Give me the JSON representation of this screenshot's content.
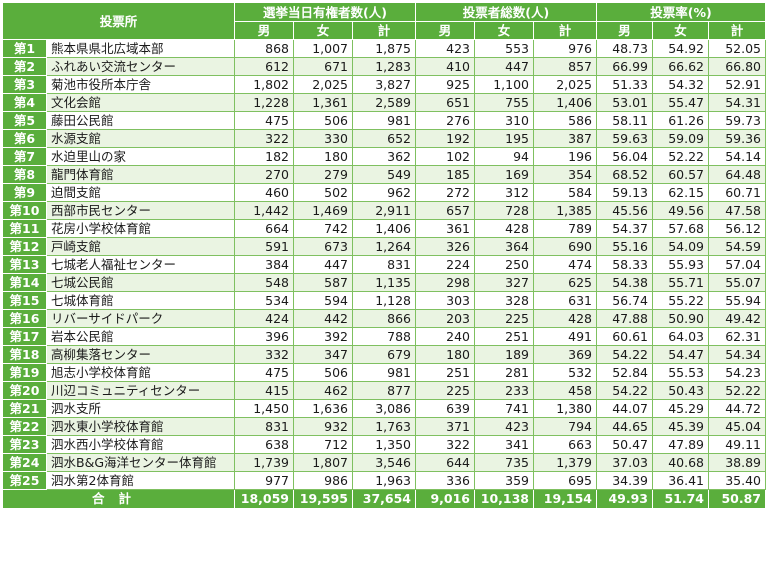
{
  "header": {
    "place": "投票所",
    "voters": "選挙当日有権者数(人)",
    "votes": "投票者総数(人)",
    "rate": "投票率(%)",
    "male": "男",
    "female": "女",
    "total": "計"
  },
  "rows": [
    {
      "no": "第1",
      "name": "熊本県県北広域本部",
      "v": [
        "868",
        "1,007",
        "1,875"
      ],
      "b": [
        "423",
        "553",
        "976"
      ],
      "r": [
        "48.73",
        "54.92",
        "52.05"
      ]
    },
    {
      "no": "第2",
      "name": "ふれあい交流センター",
      "v": [
        "612",
        "671",
        "1,283"
      ],
      "b": [
        "410",
        "447",
        "857"
      ],
      "r": [
        "66.99",
        "66.62",
        "66.80"
      ]
    },
    {
      "no": "第3",
      "name": "菊池市役所本庁舎",
      "v": [
        "1,802",
        "2,025",
        "3,827"
      ],
      "b": [
        "925",
        "1,100",
        "2,025"
      ],
      "r": [
        "51.33",
        "54.32",
        "52.91"
      ]
    },
    {
      "no": "第4",
      "name": "文化会館",
      "v": [
        "1,228",
        "1,361",
        "2,589"
      ],
      "b": [
        "651",
        "755",
        "1,406"
      ],
      "r": [
        "53.01",
        "55.47",
        "54.31"
      ]
    },
    {
      "no": "第5",
      "name": "藤田公民館",
      "v": [
        "475",
        "506",
        "981"
      ],
      "b": [
        "276",
        "310",
        "586"
      ],
      "r": [
        "58.11",
        "61.26",
        "59.73"
      ]
    },
    {
      "no": "第6",
      "name": "水源支館",
      "v": [
        "322",
        "330",
        "652"
      ],
      "b": [
        "192",
        "195",
        "387"
      ],
      "r": [
        "59.63",
        "59.09",
        "59.36"
      ]
    },
    {
      "no": "第7",
      "name": "水迫里山の家",
      "v": [
        "182",
        "180",
        "362"
      ],
      "b": [
        "102",
        "94",
        "196"
      ],
      "r": [
        "56.04",
        "52.22",
        "54.14"
      ]
    },
    {
      "no": "第8",
      "name": "龍門体育館",
      "v": [
        "270",
        "279",
        "549"
      ],
      "b": [
        "185",
        "169",
        "354"
      ],
      "r": [
        "68.52",
        "60.57",
        "64.48"
      ]
    },
    {
      "no": "第9",
      "name": "迫間支館",
      "v": [
        "460",
        "502",
        "962"
      ],
      "b": [
        "272",
        "312",
        "584"
      ],
      "r": [
        "59.13",
        "62.15",
        "60.71"
      ]
    },
    {
      "no": "第10",
      "name": "西部市民センター",
      "v": [
        "1,442",
        "1,469",
        "2,911"
      ],
      "b": [
        "657",
        "728",
        "1,385"
      ],
      "r": [
        "45.56",
        "49.56",
        "47.58"
      ]
    },
    {
      "no": "第11",
      "name": "花房小学校体育館",
      "v": [
        "664",
        "742",
        "1,406"
      ],
      "b": [
        "361",
        "428",
        "789"
      ],
      "r": [
        "54.37",
        "57.68",
        "56.12"
      ]
    },
    {
      "no": "第12",
      "name": "戸崎支館",
      "v": [
        "591",
        "673",
        "1,264"
      ],
      "b": [
        "326",
        "364",
        "690"
      ],
      "r": [
        "55.16",
        "54.09",
        "54.59"
      ]
    },
    {
      "no": "第13",
      "name": "七城老人福祉センター",
      "v": [
        "384",
        "447",
        "831"
      ],
      "b": [
        "224",
        "250",
        "474"
      ],
      "r": [
        "58.33",
        "55.93",
        "57.04"
      ]
    },
    {
      "no": "第14",
      "name": "七城公民館",
      "v": [
        "548",
        "587",
        "1,135"
      ],
      "b": [
        "298",
        "327",
        "625"
      ],
      "r": [
        "54.38",
        "55.71",
        "55.07"
      ]
    },
    {
      "no": "第15",
      "name": "七城体育館",
      "v": [
        "534",
        "594",
        "1,128"
      ],
      "b": [
        "303",
        "328",
        "631"
      ],
      "r": [
        "56.74",
        "55.22",
        "55.94"
      ]
    },
    {
      "no": "第16",
      "name": "リバーサイドパーク",
      "v": [
        "424",
        "442",
        "866"
      ],
      "b": [
        "203",
        "225",
        "428"
      ],
      "r": [
        "47.88",
        "50.90",
        "49.42"
      ]
    },
    {
      "no": "第17",
      "name": "岩本公民館",
      "v": [
        "396",
        "392",
        "788"
      ],
      "b": [
        "240",
        "251",
        "491"
      ],
      "r": [
        "60.61",
        "64.03",
        "62.31"
      ]
    },
    {
      "no": "第18",
      "name": "高柳集落センター",
      "v": [
        "332",
        "347",
        "679"
      ],
      "b": [
        "180",
        "189",
        "369"
      ],
      "r": [
        "54.22",
        "54.47",
        "54.34"
      ]
    },
    {
      "no": "第19",
      "name": "旭志小学校体育館",
      "v": [
        "475",
        "506",
        "981"
      ],
      "b": [
        "251",
        "281",
        "532"
      ],
      "r": [
        "52.84",
        "55.53",
        "54.23"
      ]
    },
    {
      "no": "第20",
      "name": "川辺コミュニティセンター",
      "v": [
        "415",
        "462",
        "877"
      ],
      "b": [
        "225",
        "233",
        "458"
      ],
      "r": [
        "54.22",
        "50.43",
        "52.22"
      ]
    },
    {
      "no": "第21",
      "name": "泗水支所",
      "v": [
        "1,450",
        "1,636",
        "3,086"
      ],
      "b": [
        "639",
        "741",
        "1,380"
      ],
      "r": [
        "44.07",
        "45.29",
        "44.72"
      ]
    },
    {
      "no": "第22",
      "name": "泗水東小学校体育館",
      "v": [
        "831",
        "932",
        "1,763"
      ],
      "b": [
        "371",
        "423",
        "794"
      ],
      "r": [
        "44.65",
        "45.39",
        "45.04"
      ]
    },
    {
      "no": "第23",
      "name": "泗水西小学校体育館",
      "v": [
        "638",
        "712",
        "1,350"
      ],
      "b": [
        "322",
        "341",
        "663"
      ],
      "r": [
        "50.47",
        "47.89",
        "49.11"
      ]
    },
    {
      "no": "第24",
      "name": "泗水B&G海洋センター体育館",
      "v": [
        "1,739",
        "1,807",
        "3,546"
      ],
      "b": [
        "644",
        "735",
        "1,379"
      ],
      "r": [
        "37.03",
        "40.68",
        "38.89"
      ]
    },
    {
      "no": "第25",
      "name": "泗水第2体育館",
      "v": [
        "977",
        "986",
        "1,963"
      ],
      "b": [
        "336",
        "359",
        "695"
      ],
      "r": [
        "34.39",
        "36.41",
        "35.40"
      ]
    }
  ],
  "totals": {
    "label": "合計",
    "v": [
      "18,059",
      "19,595",
      "37,654"
    ],
    "b": [
      "9,016",
      "10,138",
      "19,154"
    ],
    "r": [
      "49.93",
      "51.74",
      "50.87"
    ]
  },
  "colors": {
    "header_green": "#5aae3c",
    "alt_row": "#eaf4e2",
    "border": "#7fc060"
  }
}
